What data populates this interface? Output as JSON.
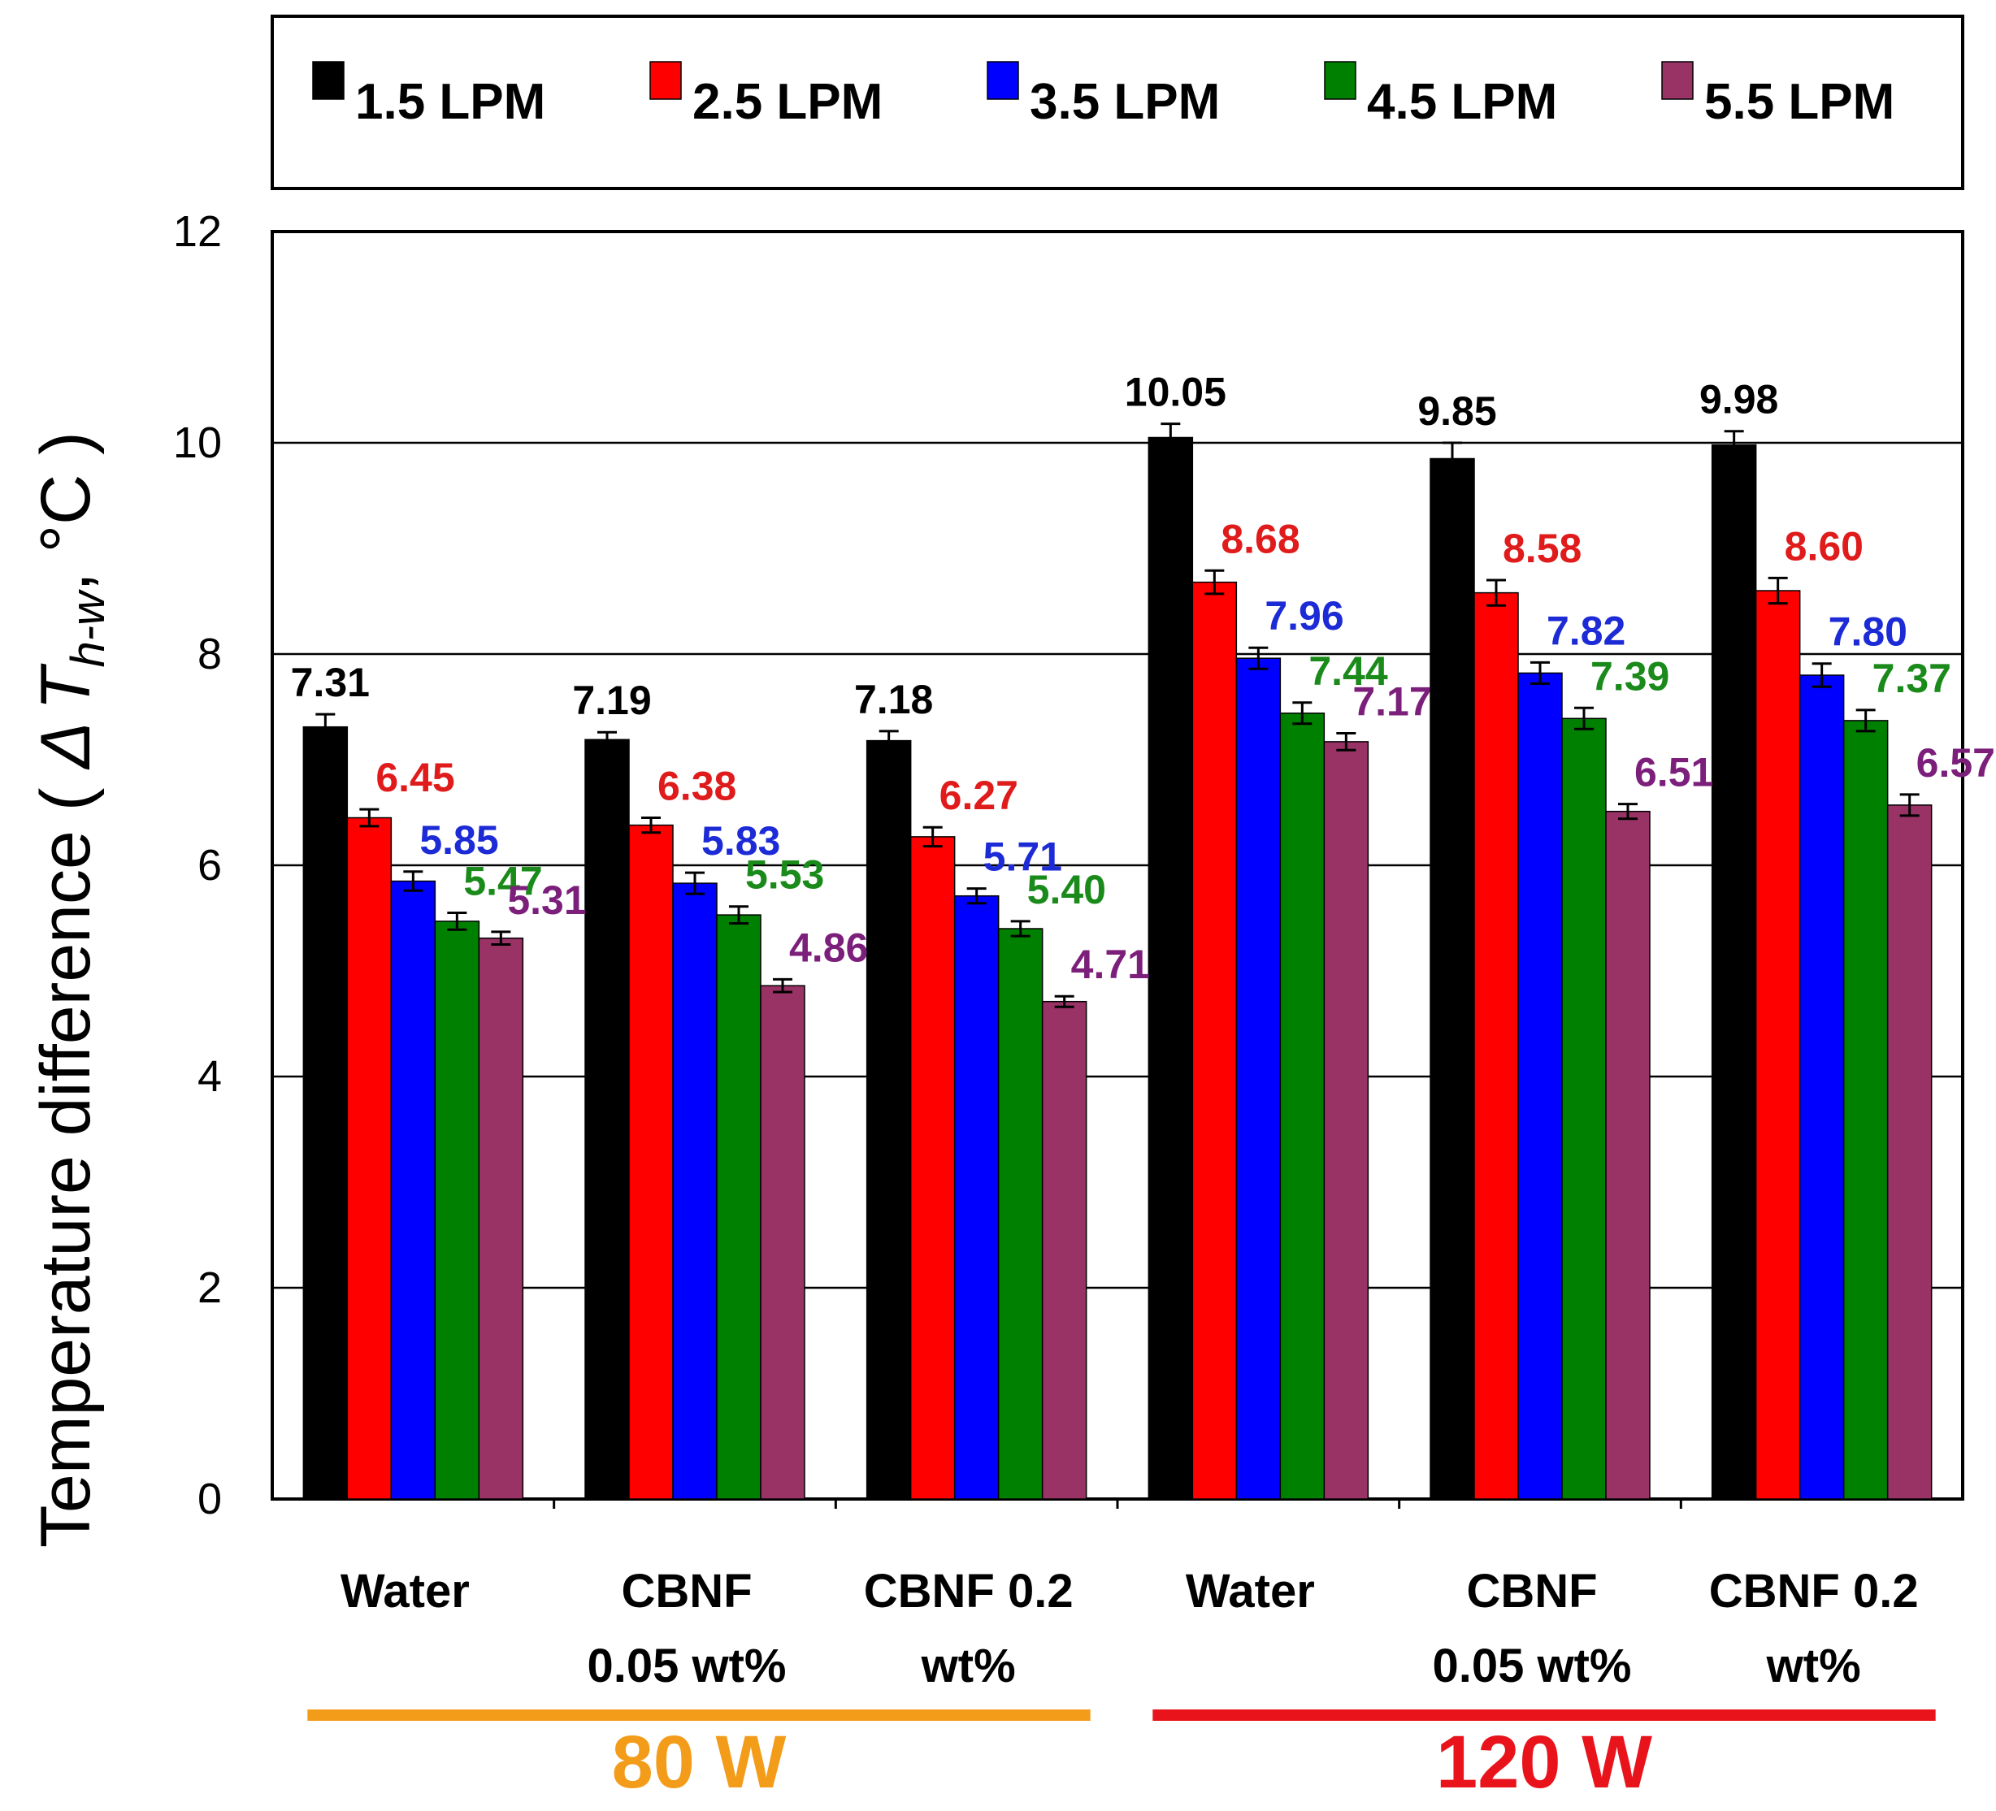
{
  "chart_data": {
    "type": "bar",
    "ylabel_prefix": "Temperature difference ( ",
    "ylabel_delta": "Δ",
    "ylabel_T": "T",
    "ylabel_sub": "h-w",
    "ylabel_suffix": ", °C )",
    "ylim": [
      0,
      12
    ],
    "yticks": [
      "0",
      "2",
      "4",
      "6",
      "8",
      "10",
      "12"
    ],
    "grid": true,
    "legend_position": "top",
    "categories": [
      {
        "lines": [
          "Water"
        ]
      },
      {
        "lines": [
          "CBNF",
          "0.05 wt%"
        ]
      },
      {
        "lines": [
          "CBNF 0.2",
          "wt%"
        ]
      },
      {
        "lines": [
          "Water"
        ]
      },
      {
        "lines": [
          "CBNF",
          "0.05 wt%"
        ]
      },
      {
        "lines": [
          "CBNF 0.2",
          "wt%"
        ]
      }
    ],
    "series": [
      {
        "name": "1.5 LPM",
        "color": "#000000",
        "label_color": "#000000",
        "values": [
          7.31,
          7.19,
          7.18,
          10.05,
          9.85,
          9.98
        ],
        "labels": [
          "7.31",
          "7.19",
          "7.18",
          "10.05",
          "9.85",
          "9.98"
        ],
        "errors": [
          0.12,
          0.07,
          0.09,
          0.13,
          0.15,
          0.13
        ]
      },
      {
        "name": "2.5 LPM",
        "color": "#ff0000",
        "label_color": "#e01b1b",
        "values": [
          6.45,
          6.38,
          6.27,
          8.68,
          8.58,
          8.6
        ],
        "labels": [
          "6.45",
          "6.38",
          "6.27",
          "8.68",
          "8.58",
          "8.60"
        ],
        "errors": [
          0.08,
          0.07,
          0.09,
          0.11,
          0.12,
          0.12
        ]
      },
      {
        "name": "3.5 LPM",
        "color": "#0000ff",
        "label_color": "#1c2bd6",
        "values": [
          5.85,
          5.83,
          5.71,
          7.96,
          7.82,
          7.8
        ],
        "labels": [
          "5.85",
          "5.83",
          "5.71",
          "7.96",
          "7.82",
          "7.80"
        ],
        "errors": [
          0.09,
          0.1,
          0.07,
          0.1,
          0.1,
          0.11
        ]
      },
      {
        "name": "4.5 LPM",
        "color": "#008000",
        "label_color": "#1a8a1a",
        "values": [
          5.47,
          5.53,
          5.4,
          7.44,
          7.39,
          7.37
        ],
        "labels": [
          "5.47",
          "5.53",
          "5.40",
          "7.44",
          "7.39",
          "7.37"
        ],
        "errors": [
          0.08,
          0.08,
          0.07,
          0.1,
          0.1,
          0.1
        ]
      },
      {
        "name": "5.5 LPM",
        "color": "#993366",
        "label_color": "#7b1f7b",
        "values": [
          5.31,
          4.86,
          4.71,
          7.17,
          6.51,
          6.57
        ],
        "labels": [
          "5.31",
          "4.86",
          "4.71",
          "7.17",
          "6.51",
          "6.57"
        ],
        "errors": [
          0.06,
          0.06,
          0.05,
          0.08,
          0.07,
          0.1
        ]
      }
    ],
    "groups": [
      {
        "label": "80 W",
        "color": "#f39c1a",
        "categories": [
          0,
          1,
          2
        ]
      },
      {
        "label": "120 W",
        "color": "#e8131b",
        "categories": [
          3,
          4,
          5
        ]
      }
    ]
  }
}
